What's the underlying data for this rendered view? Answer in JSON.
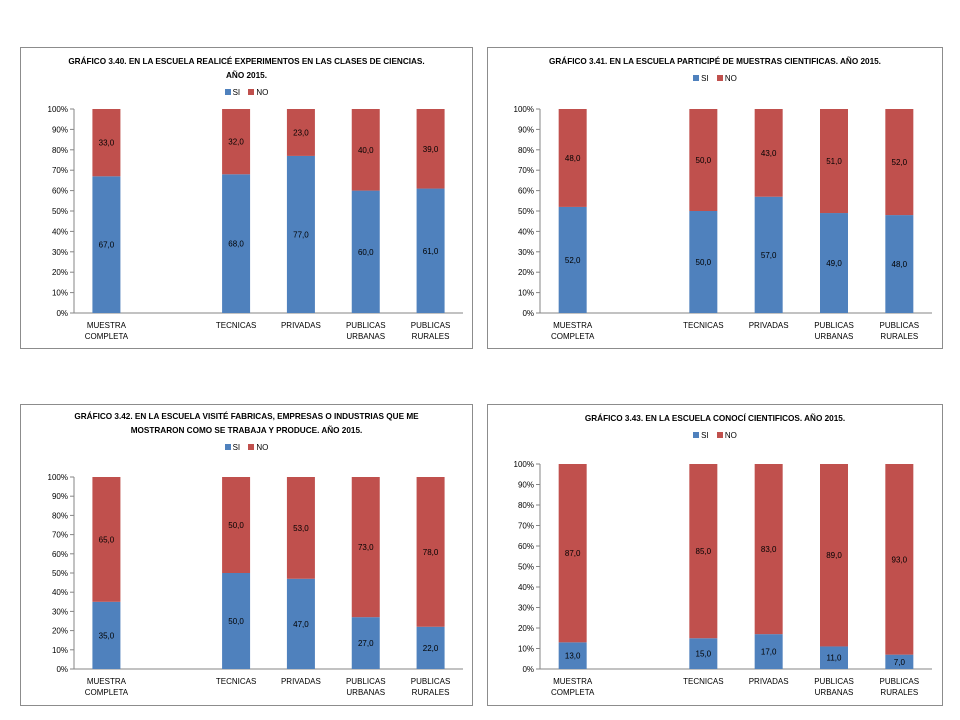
{
  "chart_data": [
    {
      "type": "bar",
      "stacked": true,
      "title_lines": [
        "GRÁFICO 3.40. EN LA ESCUELA REALICÉ EXPERIMENTOS  EN LAS CLASES DE CIENCIAS.",
        "AÑO 2015."
      ],
      "categories": [
        [
          "MUESTRA",
          "COMPLETA"
        ],
        [
          ""
        ],
        [
          "TECNICAS"
        ],
        [
          "PRIVADAS"
        ],
        [
          "PUBLICAS",
          "URBANAS"
        ],
        [
          "PUBLICAS",
          "RURALES"
        ]
      ],
      "series": [
        {
          "name": "SI",
          "color": "#4F81BD",
          "values": [
            67.0,
            null,
            68.0,
            77.0,
            60.0,
            61.0
          ],
          "labels": [
            "67,0",
            "",
            "68,0",
            "77,0",
            "60,0",
            "61,0"
          ]
        },
        {
          "name": "NO",
          "color": "#C0504D",
          "values": [
            33.0,
            null,
            32.0,
            23.0,
            40.0,
            39.0
          ],
          "labels": [
            "33,0",
            "",
            "32,0",
            "23,0",
            "40,0",
            "39,0"
          ]
        }
      ],
      "y_ticks": [
        "0%",
        "10%",
        "20%",
        "30%",
        "40%",
        "50%",
        "60%",
        "70%",
        "80%",
        "90%",
        "100%"
      ],
      "ylim": [
        0,
        100
      ],
      "legend": "top"
    },
    {
      "type": "bar",
      "stacked": true,
      "title_lines": [
        "GRÁFICO 3.41. EN LA ESCUELA PARTICIPÉ DE MUESTRAS CIENTIFICAS. AÑO 2015."
      ],
      "categories": [
        [
          "MUESTRA",
          "COMPLETA"
        ],
        [
          ""
        ],
        [
          "TECNICAS"
        ],
        [
          "PRIVADAS"
        ],
        [
          "PUBLICAS",
          "URBANAS"
        ],
        [
          "PUBLICAS",
          "RURALES"
        ]
      ],
      "series": [
        {
          "name": "SI",
          "color": "#4F81BD",
          "values": [
            52.0,
            null,
            50.0,
            57.0,
            49.0,
            48.0
          ],
          "labels": [
            "52,0",
            "",
            "50,0",
            "57,0",
            "49,0",
            "48,0"
          ]
        },
        {
          "name": "NO",
          "color": "#C0504D",
          "values": [
            48.0,
            null,
            50.0,
            43.0,
            51.0,
            52.0
          ],
          "labels": [
            "48,0",
            "",
            "50,0",
            "43,0",
            "51,0",
            "52,0"
          ]
        }
      ],
      "y_ticks": [
        "0%",
        "10%",
        "20%",
        "30%",
        "40%",
        "50%",
        "60%",
        "70%",
        "80%",
        "90%",
        "100%"
      ],
      "ylim": [
        0,
        100
      ],
      "legend": "top"
    },
    {
      "type": "bar",
      "stacked": true,
      "title_lines": [
        "GRÁFICO 3.42. EN LA ESCUELA VISITÉ FABRICAS, EMPRESAS O INDUSTRIAS QUE ME",
        "MOSTRARON COMO SE TRABAJA Y PRODUCE.  AÑO 2015."
      ],
      "categories": [
        [
          "MUESTRA",
          "COMPLETA"
        ],
        [
          ""
        ],
        [
          "TECNICAS"
        ],
        [
          "PRIVADAS"
        ],
        [
          "PUBLICAS",
          "URBANAS"
        ],
        [
          "PUBLICAS",
          "RURALES"
        ]
      ],
      "series": [
        {
          "name": "SI",
          "color": "#4F81BD",
          "values": [
            35.0,
            null,
            50.0,
            47.0,
            27.0,
            22.0
          ],
          "labels": [
            "35,0",
            "",
            "50,0",
            "47,0",
            "27,0",
            "22,0"
          ]
        },
        {
          "name": "NO",
          "color": "#C0504D",
          "values": [
            65.0,
            null,
            50.0,
            53.0,
            73.0,
            78.0
          ],
          "labels": [
            "65,0",
            "",
            "50,0",
            "53,0",
            "73,0",
            "78,0"
          ]
        }
      ],
      "y_ticks": [
        "0%",
        "10%",
        "20%",
        "30%",
        "40%",
        "50%",
        "60%",
        "70%",
        "80%",
        "90%",
        "100%"
      ],
      "ylim": [
        0,
        100
      ],
      "legend": "top"
    },
    {
      "type": "bar",
      "stacked": true,
      "title_lines": [
        "GRÁFICO 3.43. EN LA ESCUELA CONOCÍ CIENTIFICOS. AÑO 2015."
      ],
      "categories": [
        [
          "MUESTRA",
          "COMPLETA"
        ],
        [
          ""
        ],
        [
          "TECNICAS"
        ],
        [
          "PRIVADAS"
        ],
        [
          "PUBLICAS",
          "URBANAS"
        ],
        [
          "PUBLICAS",
          "RURALES"
        ]
      ],
      "series": [
        {
          "name": "SI",
          "color": "#4F81BD",
          "values": [
            13.0,
            null,
            15.0,
            17.0,
            11.0,
            7.0
          ],
          "labels": [
            "13,0",
            "",
            "15,0",
            "17,0",
            "11,0",
            "7,0"
          ]
        },
        {
          "name": "NO",
          "color": "#C0504D",
          "values": [
            87.0,
            null,
            85.0,
            83.0,
            89.0,
            93.0
          ],
          "labels": [
            "87,0",
            "",
            "85,0",
            "83,0",
            "89,0",
            "93,0"
          ]
        }
      ],
      "y_ticks": [
        "0%",
        "10%",
        "20%",
        "30%",
        "40%",
        "50%",
        "60%",
        "70%",
        "80%",
        "90%",
        "100%"
      ],
      "ylim": [
        0,
        100
      ],
      "legend": "top"
    }
  ]
}
